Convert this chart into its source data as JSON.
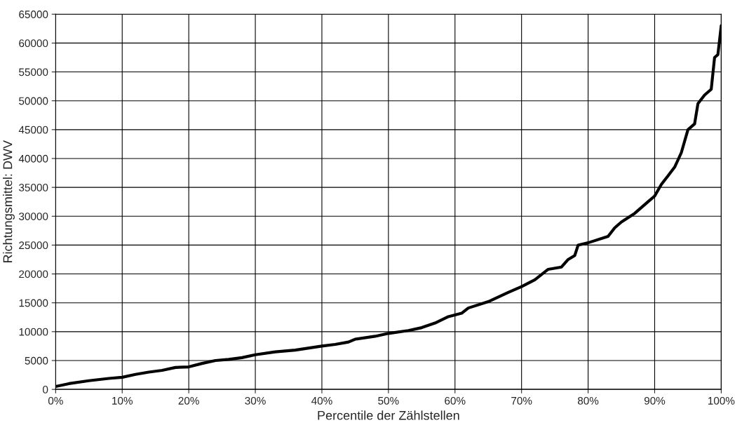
{
  "chart_data": {
    "type": "line",
    "xlabel": "Percentile der Zählstellen",
    "ylabel": "Richtungsmittel: DWV",
    "x": [
      0,
      2,
      5,
      8,
      10,
      12,
      14,
      16,
      18,
      20,
      22,
      24,
      26,
      28,
      30,
      33,
      36,
      40,
      42,
      44,
      45,
      48,
      50,
      53,
      55,
      57,
      59,
      61,
      62,
      65,
      68,
      70,
      72,
      74,
      76,
      77,
      78,
      78.5,
      80,
      83,
      84,
      85,
      87,
      89,
      90,
      91,
      92,
      93,
      94,
      95,
      96,
      96.5,
      97.5,
      98.5,
      99,
      99.5,
      100
    ],
    "series": [
      {
        "color": "#000000",
        "values": [
          500,
          1000,
          1500,
          1900,
          2100,
          2600,
          3000,
          3300,
          3800,
          3900,
          4500,
          5000,
          5200,
          5500,
          6000,
          6500,
          6800,
          7500,
          7800,
          8200,
          8700,
          9200,
          9700,
          10200,
          10700,
          11500,
          12600,
          13200,
          14100,
          15200,
          16800,
          17800,
          19000,
          20800,
          21200,
          22500,
          23200,
          25000,
          25400,
          26500,
          28000,
          29000,
          30500,
          32500,
          33500,
          35500,
          37000,
          38500,
          41000,
          45000,
          46000,
          49500,
          51000,
          52000,
          57500,
          58000,
          63000
        ]
      }
    ],
    "xlim": [
      0,
      100
    ],
    "ylim": [
      0,
      65000
    ],
    "xticks": [
      {
        "value": 0,
        "label": "0%"
      },
      {
        "value": 10,
        "label": "10%"
      },
      {
        "value": 20,
        "label": "20%"
      },
      {
        "value": 30,
        "label": "30%"
      },
      {
        "value": 40,
        "label": "40%"
      },
      {
        "value": 50,
        "label": "50%"
      },
      {
        "value": 60,
        "label": "60%"
      },
      {
        "value": 70,
        "label": "70%"
      },
      {
        "value": 80,
        "label": "80%"
      },
      {
        "value": 90,
        "label": "90%"
      },
      {
        "value": 100,
        "label": "100%"
      }
    ],
    "yticks": [
      0,
      5000,
      10000,
      15000,
      20000,
      25000,
      30000,
      35000,
      40000,
      45000,
      50000,
      55000,
      60000,
      65000
    ],
    "grid": true,
    "marker": "none",
    "line_style": "solid"
  }
}
